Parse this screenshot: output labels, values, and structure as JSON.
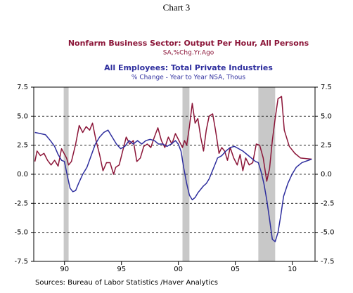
{
  "chart_data": {
    "type": "line",
    "title": "Chart 3",
    "subtitles": [
      {
        "text": "Nonfarm Business Sector: Output Per Hour, All Persons",
        "color": "#8b1538"
      },
      {
        "text": "SA,%Chg.Yr.Ago",
        "color": "#8b1538"
      },
      {
        "text": "All Employees: Total Private Industries",
        "color": "#2e2e9e"
      },
      {
        "text": "% Change - Year to Year    NSA, Thous",
        "color": "#2e2e9e"
      }
    ],
    "source": "Sources:  Bureau of Labor Statistics /Haver Analytics",
    "xlim": [
      1987.3,
      2012
    ],
    "xticks": [
      {
        "value": 1990,
        "label": "90"
      },
      {
        "value": 1995,
        "label": "95"
      },
      {
        "value": 2000,
        "label": "00"
      },
      {
        "value": 2005,
        "label": "05"
      },
      {
        "value": 2010,
        "label": "10"
      }
    ],
    "ylim": [
      -7.5,
      7.5
    ],
    "yticks": [
      7.5,
      {
        "value": 5,
        "label": "5.0"
      },
      2.5,
      {
        "value": 0,
        "label": "0.0"
      },
      -2.5,
      {
        "value": -5,
        "label": "-5.0"
      },
      -7.5
    ],
    "y2lim": [
      -7.5,
      7.5
    ],
    "y2ticks": [
      7.5,
      {
        "value": 5,
        "label": "5.0"
      },
      2.5,
      {
        "value": 0,
        "label": "0.0"
      },
      -2.5,
      {
        "value": -5,
        "label": "-5.0"
      },
      -7.5
    ],
    "grid": true,
    "shaded_periods": [
      [
        1989.93,
        1990.36
      ],
      [
        2000.36,
        2000.97
      ],
      [
        2007.02,
        2008.5
      ]
    ],
    "shade_color": "#c8c8c8",
    "series": [
      {
        "name": "Nonfarm Business Sector: Output Per Hour, All Persons",
        "color": "#8b1538",
        "x": [
          1987.4,
          1987.59,
          1987.89,
          1988.2,
          1988.51,
          1988.82,
          1989.13,
          1989.44,
          1989.74,
          1990.18,
          1990.36,
          1990.61,
          1990.98,
          1991.29,
          1991.6,
          1991.9,
          1992.21,
          1992.46,
          1992.77,
          1993.08,
          1993.38,
          1993.69,
          1994.0,
          1994.31,
          1994.5,
          1994.8,
          1995.11,
          1995.42,
          1995.73,
          1996.04,
          1996.35,
          1996.66,
          1996.96,
          1997.27,
          1997.58,
          1997.89,
          1998.2,
          1998.51,
          1998.81,
          1999.12,
          1999.43,
          1999.74,
          2000.05,
          2000.36,
          2000.54,
          2000.73,
          2000.97,
          2001.22,
          2001.47,
          2001.71,
          2001.96,
          2002.21,
          2002.45,
          2002.7,
          2003.01,
          2003.26,
          2003.57,
          2003.81,
          2004.06,
          2004.31,
          2004.55,
          2004.86,
          2005.17,
          2005.42,
          2005.66,
          2005.91,
          2006.22,
          2006.53,
          2006.84,
          2007.14,
          2007.45,
          2007.76,
          2008.01,
          2008.25,
          2008.5,
          2008.75,
          2009.06,
          2009.3,
          2009.74,
          2010.23,
          2010.72,
          2011.71
        ],
        "values": [
          1.1,
          2,
          1.6,
          1.8,
          1.2,
          0.8,
          1.2,
          0.7,
          2.2,
          1.4,
          0.8,
          1.1,
          2.6,
          4.2,
          3.6,
          4.1,
          3.8,
          4.4,
          2.9,
          1.7,
          0.3,
          1,
          1,
          0,
          0.6,
          0.8,
          2,
          3.2,
          2.6,
          2.9,
          1.1,
          1.4,
          2.4,
          2.6,
          2.3,
          3.2,
          4,
          2.9,
          2.3,
          3.2,
          2.6,
          3.5,
          2.9,
          2.3,
          2.9,
          2.5,
          4.1,
          6.1,
          4.4,
          4.8,
          3.2,
          2,
          3.8,
          5,
          5.2,
          3.8,
          1.8,
          2.3,
          2,
          1.2,
          2.3,
          1.4,
          0.8,
          1.7,
          0.3,
          1.4,
          0.8,
          1,
          2.6,
          2.5,
          1.4,
          -0.6,
          0.5,
          2.9,
          4.8,
          6.5,
          6.7,
          3.8,
          2.4,
          1.8,
          1.4,
          1.3
        ]
      },
      {
        "name": "All Employees: Total Private Industries",
        "color": "#2e2e9e",
        "x": [
          1987.4,
          1987.89,
          1988.33,
          1988.76,
          1989.13,
          1989.44,
          1989.74,
          1989.99,
          1990.24,
          1990.49,
          1990.73,
          1990.98,
          1991.23,
          1991.6,
          1991.97,
          1992.34,
          1992.71,
          1993.08,
          1993.45,
          1993.82,
          1994.19,
          1994.56,
          1994.93,
          1995.3,
          1995.67,
          1996.04,
          1996.41,
          1996.78,
          1997.15,
          1997.52,
          1997.89,
          1998.26,
          1998.63,
          1999.0,
          1999.37,
          1999.74,
          1999.99,
          2000.23,
          2000.48,
          2000.73,
          2000.97,
          2001.22,
          2001.47,
          2001.71,
          2001.96,
          2002.21,
          2002.45,
          2002.7,
          2002.95,
          2003.2,
          2003.44,
          2003.81,
          2004.18,
          2004.55,
          2004.92,
          2005.29,
          2005.66,
          2006.03,
          2006.4,
          2006.77,
          2007.02,
          2007.27,
          2007.51,
          2007.76,
          2008.01,
          2008.25,
          2008.5,
          2008.75,
          2009.0,
          2009.24,
          2009.61,
          2009.98,
          2010.35,
          2010.85,
          2011.71
        ],
        "values": [
          3.6,
          3.5,
          3.4,
          2.9,
          2.4,
          1.7,
          1.2,
          1.1,
          -0.1,
          -1.2,
          -1.5,
          -1.4,
          -0.8,
          0,
          0.6,
          1.6,
          2.6,
          3.2,
          3.6,
          3.8,
          3.2,
          2.6,
          2.2,
          2.4,
          2.9,
          2.6,
          2.9,
          2.6,
          2.9,
          3,
          2.9,
          2.6,
          2.6,
          2.4,
          2.6,
          2.9,
          2.6,
          2,
          0.5,
          -0.8,
          -1.8,
          -2.2,
          -2,
          -1.6,
          -1.3,
          -1,
          -0.8,
          -0.4,
          0.2,
          0.8,
          1.4,
          1.6,
          2,
          2.3,
          2.4,
          2.2,
          2,
          1.7,
          1.4,
          1.1,
          1,
          0.2,
          -0.8,
          -2.2,
          -3.9,
          -5.6,
          -5.8,
          -5,
          -3.5,
          -1.9,
          -0.8,
          0,
          0.6,
          1,
          1.3
        ]
      }
    ]
  }
}
